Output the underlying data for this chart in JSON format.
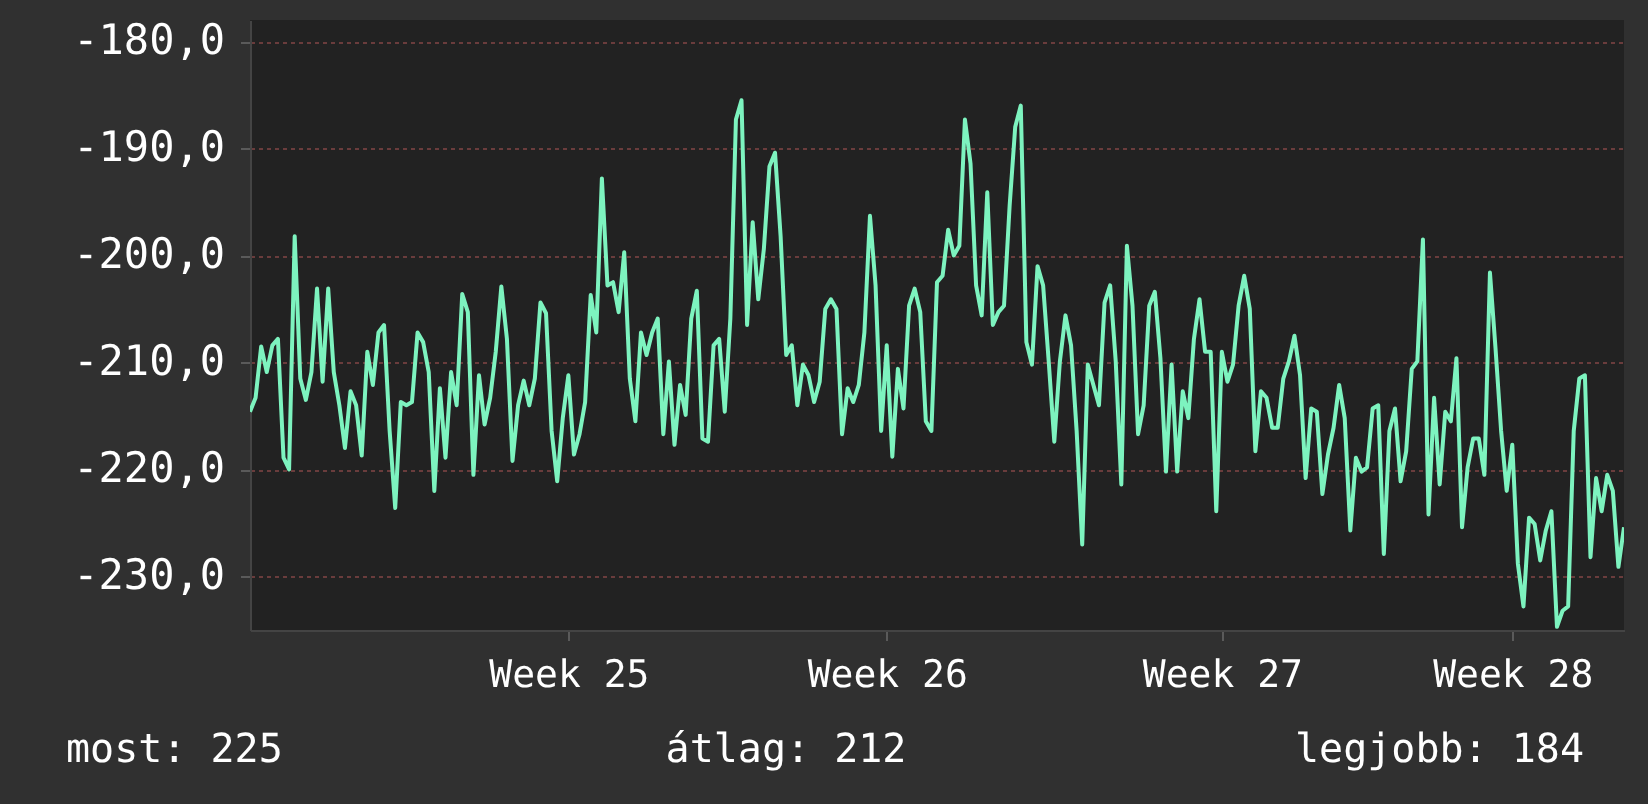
{
  "chart_data": {
    "type": "line",
    "color": "#7df3bf",
    "grid": "y",
    "marker": "none",
    "line_style": "solid",
    "ylim": [
      -235,
      -178
    ],
    "categories": [
      null,
      null,
      null,
      null,
      null,
      null,
      null,
      null,
      null,
      null,
      null,
      null,
      null,
      null,
      null,
      null,
      null,
      null,
      null,
      null,
      null,
      null,
      null,
      null,
      null,
      null,
      null,
      null,
      null,
      null,
      null,
      null,
      null,
      null,
      null,
      null,
      null,
      null,
      null,
      null,
      null,
      null,
      null,
      null,
      null,
      null,
      null,
      null,
      null,
      null,
      null,
      null,
      null,
      null,
      null,
      null,
      null,
      "Week 25",
      null,
      null,
      null,
      null,
      null,
      null,
      null,
      null,
      null,
      null,
      null,
      null,
      null,
      null,
      null,
      null,
      null,
      null,
      null,
      null,
      null,
      null,
      null,
      null,
      null,
      null,
      null,
      null,
      null,
      null,
      null,
      null,
      null,
      null,
      null,
      null,
      null,
      null,
      null,
      null,
      null,
      null,
      null,
      null,
      null,
      null,
      null,
      null,
      null,
      null,
      null,
      null,
      null,
      null,
      null,
      null,
      "Week 26",
      null,
      null,
      null,
      null,
      null,
      null,
      null,
      null,
      null,
      null,
      null,
      null,
      null,
      null,
      null,
      null,
      null,
      null,
      null,
      null,
      null,
      null,
      null,
      null,
      null,
      null,
      null,
      null,
      null,
      null,
      null,
      null,
      null,
      null,
      null,
      null,
      null,
      null,
      null,
      null,
      null,
      null,
      null,
      null,
      null,
      null,
      null,
      null,
      null,
      null,
      null,
      null,
      null,
      null,
      null,
      null,
      null,
      null,
      null,
      "Week 27",
      null,
      null,
      null,
      null,
      null,
      null,
      null,
      null,
      null,
      null,
      null,
      null,
      null,
      null,
      null,
      null,
      null,
      null,
      null,
      null,
      null,
      null,
      null,
      null,
      null,
      null,
      null,
      null,
      null,
      null,
      null,
      null,
      null,
      null,
      null,
      null,
      null,
      null,
      null,
      null,
      null,
      null,
      null,
      null,
      null,
      null,
      null,
      null,
      null,
      null,
      null,
      "Week 28",
      null,
      null,
      null,
      null,
      null,
      null,
      null,
      null,
      null,
      null,
      null,
      null,
      null,
      null,
      null,
      null,
      null,
      null,
      null,
      null
    ],
    "yticks": [
      {
        "value": -180,
        "label": "-180,0"
      },
      {
        "value": -190,
        "label": "-190,0"
      },
      {
        "value": -200,
        "label": "-200,0"
      },
      {
        "value": -210,
        "label": "-210,0"
      },
      {
        "value": -220,
        "label": "-220,0"
      },
      {
        "value": -230,
        "label": "-230,0"
      }
    ],
    "annotations": [
      "most: 225",
      "átlag: 212",
      "legjobb: 184"
    ],
    "values": [
      -214.6,
      -213.3,
      -208.5,
      -210.9,
      -208.4,
      -207.8,
      -218.9,
      -220.0,
      -198.2,
      -211.5,
      -213.5,
      -210.9,
      -203.1,
      -211.8,
      -203.1,
      -210.9,
      -214.0,
      -218.0,
      -212.7,
      -214.0,
      -218.7,
      -209.0,
      -212.1,
      -207.2,
      -206.5,
      -216.4,
      -223.6,
      -213.7,
      -214.0,
      -213.7,
      -207.2,
      -208.1,
      -210.9,
      -222.0,
      -212.4,
      -218.9,
      -210.9,
      -214.0,
      -203.6,
      -205.3,
      -220.5,
      -211.2,
      -215.8,
      -213.3,
      -209.0,
      -202.9,
      -207.8,
      -219.2,
      -214.0,
      -211.7,
      -214.0,
      -211.5,
      -204.4,
      -205.4,
      -216.4,
      -221.1,
      -215.2,
      -211.2,
      -218.6,
      -216.7,
      -213.7,
      -203.7,
      -207.2,
      -192.8,
      -202.8,
      -202.5,
      -205.3,
      -199.7,
      -211.5,
      -215.5,
      -207.2,
      -209.3,
      -207.2,
      -205.9,
      -216.7,
      -209.9,
      -217.7,
      -212.1,
      -214.9,
      -205.9,
      -203.3,
      -217.1,
      -217.4,
      -208.4,
      -207.8,
      -214.6,
      -205.9,
      -187.3,
      -185.5,
      -206.5,
      -196.9,
      -204.1,
      -199.4,
      -191.7,
      -190.4,
      -198.2,
      -209.3,
      -208.4,
      -214.0,
      -210.2,
      -211.2,
      -213.7,
      -211.8,
      -205.0,
      -204.1,
      -205.0,
      -216.7,
      -212.4,
      -213.7,
      -212.1,
      -207.2,
      -196.3,
      -202.8,
      -216.4,
      -208.4,
      -218.8,
      -210.6,
      -214.3,
      -204.7,
      -203.1,
      -205.3,
      -215.5,
      -216.4,
      -202.5,
      -201.9,
      -197.6,
      -200.0,
      -199.1,
      -187.3,
      -191.4,
      -202.8,
      -205.6,
      -194.1,
      -206.5,
      -205.3,
      -204.7,
      -195.4,
      -188.0,
      -186.0,
      -208.1,
      -210.2,
      -201.0,
      -202.8,
      -209.9,
      -217.4,
      -209.9,
      -205.6,
      -208.4,
      -216.4,
      -227.0,
      -210.2,
      -212.1,
      -214.0,
      -204.4,
      -202.8,
      -209.9,
      -221.4,
      -199.1,
      -204.7,
      -216.7,
      -214.0,
      -204.7,
      -203.4,
      -209.6,
      -220.2,
      -210.2,
      -220.2,
      -212.7,
      -215.2,
      -207.8,
      -204.1,
      -209.0,
      -209.0,
      -223.9,
      -209.0,
      -211.8,
      -210.2,
      -204.7,
      -201.9,
      -205.0,
      -218.3,
      -212.7,
      -213.3,
      -216.1,
      -216.1,
      -211.5,
      -209.9,
      -207.5,
      -211.2,
      -220.8,
      -214.3,
      -214.6,
      -222.3,
      -218.6,
      -216.1,
      -212.1,
      -215.2,
      -225.7,
      -218.9,
      -220.2,
      -219.8,
      -214.3,
      -214.0,
      -227.9,
      -216.4,
      -214.3,
      -221.1,
      -218.3,
      -210.6,
      -209.9,
      -198.5,
      -224.2,
      -213.3,
      -221.4,
      -214.6,
      -215.5,
      -209.6,
      -225.4,
      -219.8,
      -217.1,
      -217.1,
      -220.5,
      -201.6,
      -208.7,
      -216.4,
      -222.0,
      -217.7,
      -228.8,
      -232.8,
      -224.5,
      -225.1,
      -228.5,
      -225.7,
      -223.9,
      -234.7,
      -233.2,
      -232.8,
      -216.4,
      -211.5,
      -211.2,
      -228.2,
      -220.8,
      -223.9,
      -220.5,
      -222.0,
      -229.1,
      -225.4
    ]
  }
}
